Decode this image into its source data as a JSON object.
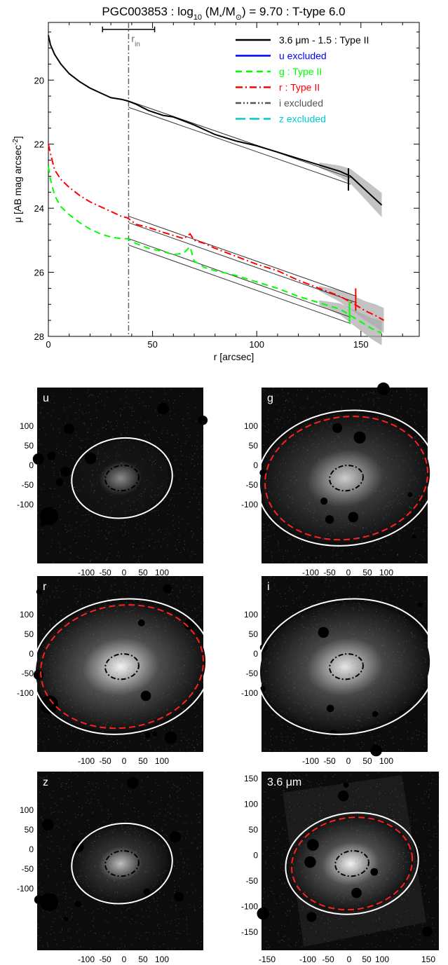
{
  "chart_data": [
    {
      "type": "line",
      "title_main": "PGC003853 : log",
      "title_sub": "10",
      "title_rest": " (M",
      "title_star": "*",
      "title_rest2": "/M",
      "title_sun": "⊙",
      "title_tail": ") = 9.70 : T-type 6.0",
      "xlabel": "r [arcsec]",
      "ylabel": "μ [AB mag arcsec",
      "ylabel_sup": "-2",
      "ylabel_end": "]",
      "xlim": [
        0,
        178
      ],
      "ylim": [
        28,
        18.2
      ],
      "x_ticks": [
        0,
        50,
        100,
        150
      ],
      "y_ticks": [
        20,
        22,
        24,
        26,
        28
      ],
      "rin": {
        "x": 38.5,
        "label": "r",
        "label_sub": "in",
        "err_low": 26,
        "err_high": 51
      },
      "legend": [
        {
          "label": "3.6 μm - 1.5 : Type II",
          "color": "#000000",
          "dash": "solid"
        },
        {
          "label": "u excluded",
          "color": "#0000ff",
          "dash": "solid"
        },
        {
          "label": "g : Type II",
          "color": "#00ff00",
          "dash": "dashed"
        },
        {
          "label": "r : Type II",
          "color": "#ff0000",
          "dash": "dashdot"
        },
        {
          "label": "i excluded",
          "color": "#555555",
          "dash": "dashdotdot"
        },
        {
          "label": "z excluded",
          "color": "#00cccc",
          "dash": "longdash"
        }
      ],
      "series": [
        {
          "name": "3.6 μm - 1.5 : Type II",
          "color": "#000000",
          "x": [
            0,
            1,
            3,
            6,
            10,
            15,
            20,
            25,
            30,
            35,
            38,
            42,
            48,
            55,
            60,
            70,
            80,
            90,
            100,
            110,
            120,
            130,
            140,
            145,
            150,
            155,
            160
          ],
          "y": [
            18.6,
            18.9,
            19.2,
            19.5,
            19.8,
            20.05,
            20.25,
            20.4,
            20.55,
            20.6,
            20.65,
            20.75,
            20.95,
            21.1,
            21.15,
            21.4,
            21.7,
            21.9,
            22.05,
            22.25,
            22.45,
            22.65,
            22.85,
            23.0,
            23.3,
            23.6,
            23.9
          ]
        },
        {
          "name": "r : Type II",
          "color": "#ff0000",
          "x": [
            0,
            1,
            3,
            6,
            10,
            15,
            20,
            25,
            30,
            35,
            38,
            42,
            48,
            55,
            60,
            65,
            68,
            70,
            75,
            80,
            90,
            100,
            110,
            120,
            130,
            140,
            147,
            152,
            157,
            161
          ],
          "y": [
            22.0,
            22.3,
            22.8,
            23.1,
            23.35,
            23.6,
            23.8,
            23.95,
            24.1,
            24.25,
            24.3,
            24.5,
            24.6,
            24.75,
            24.85,
            24.95,
            24.8,
            25.0,
            25.1,
            25.25,
            25.5,
            25.75,
            25.95,
            26.25,
            26.5,
            26.75,
            27.0,
            27.2,
            27.35,
            27.5
          ]
        },
        {
          "name": "g : Type II",
          "color": "#00ff00",
          "x": [
            0,
            1,
            3,
            6,
            10,
            15,
            20,
            25,
            30,
            35,
            38,
            42,
            48,
            55,
            60,
            65,
            68,
            70,
            75,
            80,
            90,
            100,
            110,
            120,
            130,
            140,
            145,
            150,
            155,
            160
          ],
          "y": [
            22.7,
            23.1,
            23.6,
            23.95,
            24.2,
            24.45,
            24.65,
            24.8,
            24.9,
            24.95,
            24.95,
            25.1,
            25.25,
            25.35,
            25.45,
            25.4,
            25.2,
            25.65,
            25.85,
            25.95,
            26.1,
            26.3,
            26.5,
            26.75,
            26.95,
            27.15,
            27.35,
            27.55,
            27.75,
            27.9
          ]
        }
      ],
      "fit_lines": [
        {
          "x": [
            38.5,
            145
          ],
          "y": [
            20.65,
            23.05
          ]
        },
        {
          "x": [
            38.5,
            145
          ],
          "y": [
            20.85,
            23.25
          ]
        },
        {
          "x": [
            38.5,
            148
          ],
          "y": [
            24.45,
            26.95
          ]
        },
        {
          "x": [
            38.5,
            148
          ],
          "y": [
            24.25,
            26.75
          ]
        },
        {
          "x": [
            38.5,
            145
          ],
          "y": [
            24.95,
            27.4
          ]
        },
        {
          "x": [
            38.5,
            145
          ],
          "y": [
            25.15,
            27.6
          ]
        }
      ],
      "break_marks": [
        {
          "x": 144,
          "y": 23.1,
          "color": "#000000"
        },
        {
          "x": 147.5,
          "y": 26.85,
          "color": "#ff0000"
        },
        {
          "x": 144.5,
          "y": 27.25,
          "color": "#00ff00"
        }
      ]
    },
    {
      "type": "image_grid",
      "panels": [
        {
          "label": "u",
          "ellipse_a": 72,
          "ellipse_b": 57,
          "red_dashed": false,
          "brightness": 0.15,
          "y_ticks": [
            "100",
            "50",
            "0",
            "-50",
            "-100"
          ],
          "x_ticks": [
            "-100",
            "-50",
            "0",
            "50",
            "100"
          ]
        },
        {
          "label": "g",
          "ellipse_a": 128,
          "ellipse_b": 96,
          "red_dashed": true,
          "brightness": 0.4,
          "y_ticks": [
            "100",
            "50",
            "0",
            "-50",
            "-100"
          ],
          "x_ticks": [
            "-100",
            "-50",
            "0",
            "50",
            "100"
          ]
        },
        {
          "label": "r",
          "ellipse_a": 128,
          "ellipse_b": 96,
          "red_dashed": true,
          "brightness": 0.55,
          "y_ticks": [
            "100",
            "50",
            "0",
            "-50",
            "-100"
          ],
          "x_ticks": [
            "-100",
            "-50",
            "0",
            "50",
            "100"
          ]
        },
        {
          "label": "i",
          "ellipse_a": 128,
          "ellipse_b": 96,
          "red_dashed": false,
          "brightness": 0.5,
          "y_ticks": [
            "100",
            "50",
            "0",
            "-50",
            "-100"
          ],
          "x_ticks": [
            "-100",
            "-50",
            "0",
            "50",
            "100"
          ]
        },
        {
          "label": "z",
          "ellipse_a": 72,
          "ellipse_b": 57,
          "red_dashed": false,
          "brightness": 0.35,
          "y_ticks": [
            "100",
            "50",
            "0",
            "-50",
            "-100"
          ],
          "x_ticks": [
            "-100",
            "-50",
            "0",
            "50",
            "100"
          ]
        },
        {
          "label": "3.6 μm",
          "ellipse_a": 95,
          "ellipse_b": 72,
          "red_dashed": true,
          "brightness": 0.55,
          "y_ticks": [
            "150",
            "100",
            "50",
            "0",
            "-50",
            "-100",
            "-150"
          ],
          "x_ticks": [
            "-150",
            "-100",
            "-50",
            "0",
            "50",
            "100",
            "150"
          ]
        }
      ]
    }
  ]
}
